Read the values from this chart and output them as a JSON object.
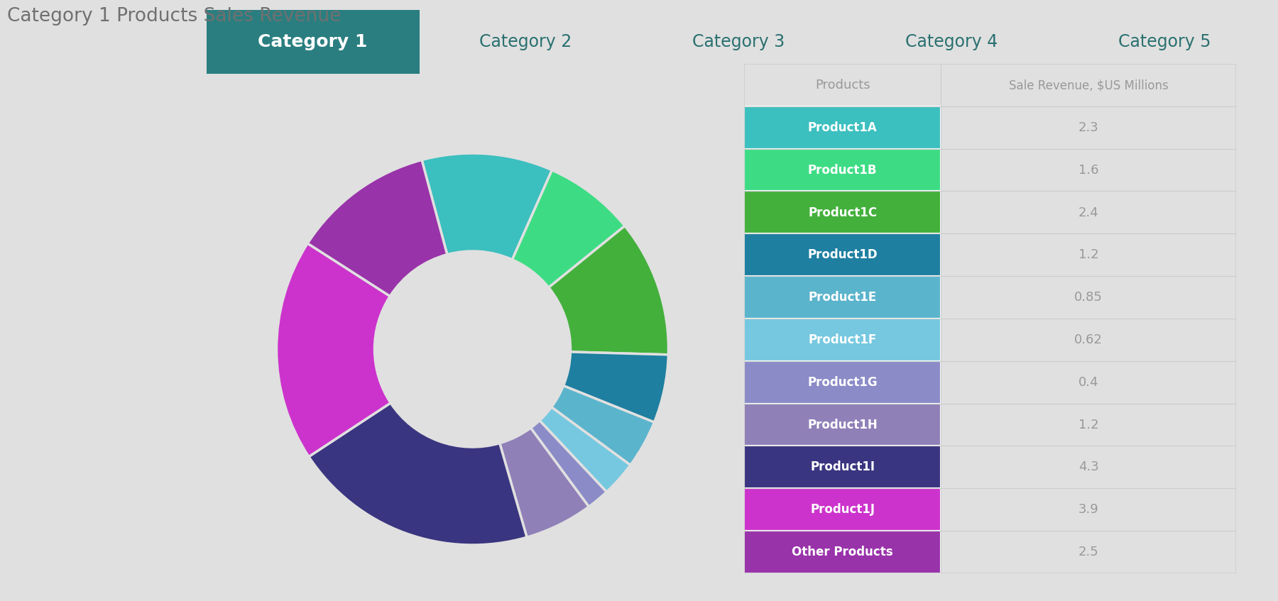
{
  "tab_labels": [
    "Category 1",
    "Category 2",
    "Category 3",
    "Category 4",
    "Category 5"
  ],
  "tab_active": 0,
  "tab_bg": "#3ECFCF",
  "tab_active_bg": "#2A7E80",
  "tab_text_color": "#2A7070",
  "tab_active_text_color": "#ffffff",
  "chart_title": "Category 1 Products Sales Revenue",
  "chart_title_color": "#707070",
  "background_color": "#E0E0E0",
  "products": [
    "Product1A",
    "Product1B",
    "Product1C",
    "Product1D",
    "Product1E",
    "Product1F",
    "Product1G",
    "Product1H",
    "Product1I",
    "Product1J",
    "Other Products"
  ],
  "values": [
    2.3,
    1.6,
    2.4,
    1.2,
    0.85,
    0.62,
    0.4,
    1.2,
    4.3,
    3.9,
    2.5
  ],
  "colors": [
    "#3CBFBF",
    "#3DDC84",
    "#43B03C",
    "#1E7FA0",
    "#5AB4CC",
    "#76C8E0",
    "#8B8BC8",
    "#9080B8",
    "#3A3580",
    "#CC33CC",
    "#9933AA"
  ],
  "table_header_products": "Products",
  "table_header_revenue": "Sale Revenue, $US Millions",
  "table_bg": "#FFFFFF",
  "table_header_text_color": "#999999",
  "table_cell_text_color": "#FFFFFF",
  "table_value_text_color": "#999999",
  "wedge_edge_color": "#E0E0E0",
  "start_angle": 105,
  "counterclock": false
}
